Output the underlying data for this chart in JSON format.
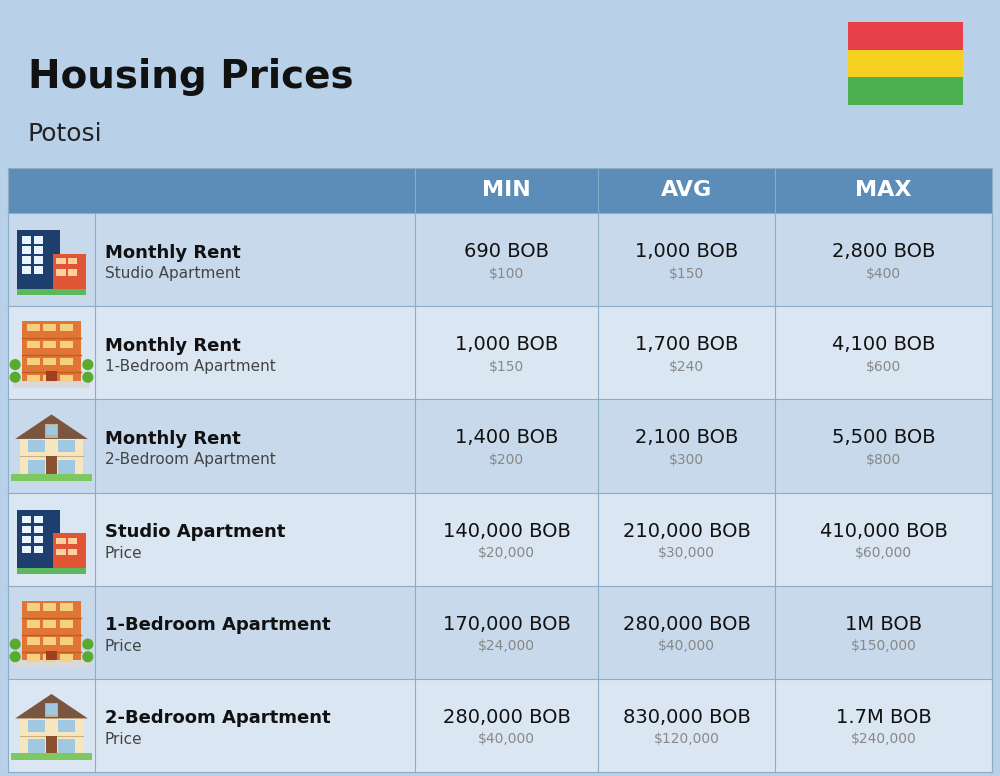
{
  "title": "Housing Prices",
  "subtitle": "Potosi",
  "background_color": "#b8d0e8",
  "header_bg_color": "#5b8db8",
  "header_text_color": "#ffffff",
  "row_bg_colors": [
    "#c8d9eb",
    "#dbe6f3"
  ],
  "col_header_labels": [
    "MIN",
    "AVG",
    "MAX"
  ],
  "rows": [
    {
      "label_bold": "Monthly Rent",
      "label_light": "Studio Apartment",
      "min_bob": "690 BOB",
      "min_usd": "$100",
      "avg_bob": "1,000 BOB",
      "avg_usd": "$150",
      "max_bob": "2,800 BOB",
      "max_usd": "$400",
      "icon_type": "studio_blue"
    },
    {
      "label_bold": "Monthly Rent",
      "label_light": "1-Bedroom Apartment",
      "min_bob": "1,000 BOB",
      "min_usd": "$150",
      "avg_bob": "1,700 BOB",
      "avg_usd": "$240",
      "max_bob": "4,100 BOB",
      "max_usd": "$600",
      "icon_type": "one_bed_orange"
    },
    {
      "label_bold": "Monthly Rent",
      "label_light": "2-Bedroom Apartment",
      "min_bob": "1,400 BOB",
      "min_usd": "$200",
      "avg_bob": "2,100 BOB",
      "avg_usd": "$300",
      "max_bob": "5,500 BOB",
      "max_usd": "$800",
      "icon_type": "two_bed_beige"
    },
    {
      "label_bold": "Studio Apartment",
      "label_light": "Price",
      "min_bob": "140,000 BOB",
      "min_usd": "$20,000",
      "avg_bob": "210,000 BOB",
      "avg_usd": "$30,000",
      "max_bob": "410,000 BOB",
      "max_usd": "$60,000",
      "icon_type": "studio_blue"
    },
    {
      "label_bold": "1-Bedroom Apartment",
      "label_light": "Price",
      "min_bob": "170,000 BOB",
      "min_usd": "$24,000",
      "avg_bob": "280,000 BOB",
      "avg_usd": "$40,000",
      "max_bob": "1M BOB",
      "max_usd": "$150,000",
      "icon_type": "one_bed_orange"
    },
    {
      "label_bold": "2-Bedroom Apartment",
      "label_light": "Price",
      "min_bob": "280,000 BOB",
      "min_usd": "$40,000",
      "avg_bob": "830,000 BOB",
      "avg_usd": "$120,000",
      "max_bob": "1.7M BOB",
      "max_usd": "$240,000",
      "icon_type": "two_bed_beige"
    }
  ],
  "flag_colors": [
    "#e8404a",
    "#f5d020",
    "#4caf50"
  ],
  "divider_color": "#8aaec8",
  "bob_fontsize": 14,
  "usd_fontsize": 10,
  "label_bold_fontsize": 13,
  "label_light_fontsize": 11
}
